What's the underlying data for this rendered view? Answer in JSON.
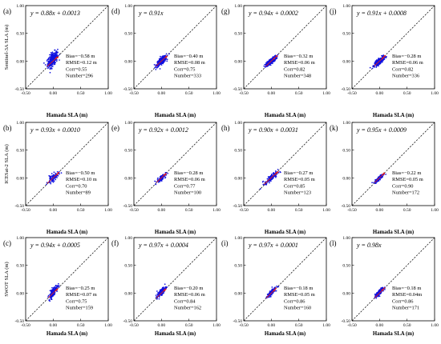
{
  "chart_data": {
    "type": "scatter",
    "xlabel": "Hamada SLA (m)",
    "xlim": [
      -0.5,
      1.0
    ],
    "ylim": [
      -0.5,
      1.0
    ],
    "x_ticks": [
      "-0.50",
      "0.00",
      "0.50",
      "1.00"
    ],
    "y_ticks": [
      "-0.50",
      "0.00",
      "0.50",
      "1.00"
    ],
    "reference_line": "y = x (dashed)",
    "colors": {
      "points": "#1010e0",
      "highlight": "#e02020",
      "fit": "#e02020",
      "one_to_one": "#000000"
    },
    "row_labels": [
      "Sentinel-3A SLA (m)",
      "ICESat-2 SLA (m)",
      "SWOT SLA (m)"
    ],
    "panels": [
      {
        "letter": "(a)",
        "row": 0,
        "col": 0,
        "equation": "y = 0.88x + 0.0013",
        "slope": 0.88,
        "intercept": 0.0013,
        "stats": [
          "Bias=−0.58 m",
          "RMSE=0.12 m",
          "Corr=0.55",
          "Number=296"
        ],
        "count": 296,
        "bias": -0.58,
        "rmse": 0.12,
        "corr": 0.55,
        "cloud": {
          "x_center": -0.01,
          "y_center": 0.03,
          "x_spread": 0.045,
          "y_spread": 0.07
        }
      },
      {
        "letter": "(d)",
        "row": 0,
        "col": 1,
        "equation": "y = 0.91x",
        "slope": 0.91,
        "intercept": 0,
        "stats": [
          "Bias=−0.40 m",
          "RMSE=0.08 m",
          "Corr=0.75",
          "Number=333"
        ],
        "count": 333,
        "bias": -0.4,
        "rmse": 0.08,
        "corr": 0.75,
        "cloud": {
          "x_center": 0.0,
          "y_center": 0.0,
          "x_spread": 0.045,
          "y_spread": 0.045
        }
      },
      {
        "letter": "(g)",
        "row": 0,
        "col": 2,
        "equation": "y = 0.94x + 0.0002",
        "slope": 0.94,
        "intercept": 0.0002,
        "stats": [
          "Bias=−0.32 m",
          "RMSE=0.06 m",
          "Corr=0.82",
          "Number=348"
        ],
        "count": 348,
        "bias": -0.32,
        "rmse": 0.06,
        "corr": 0.82,
        "cloud": {
          "x_center": 0.0,
          "y_center": 0.0,
          "x_spread": 0.045,
          "y_spread": 0.04
        }
      },
      {
        "letter": "(j)",
        "row": 0,
        "col": 3,
        "equation": "y = 0.91x + 0.0008",
        "slope": 0.91,
        "intercept": 0.0008,
        "stats": [
          "Bias=−0.28 m",
          "RMSE=0.06 m",
          "Corr=0.82",
          "Number=336"
        ],
        "count": 336,
        "bias": -0.28,
        "rmse": 0.06,
        "corr": 0.82,
        "cloud": {
          "x_center": 0.0,
          "y_center": 0.0,
          "x_spread": 0.045,
          "y_spread": 0.04
        }
      },
      {
        "letter": "(b)",
        "row": 1,
        "col": 0,
        "equation": "y = 0.93x + 0.0010",
        "slope": 0.93,
        "intercept": 0.001,
        "stats": [
          "Bias=−0.50 m",
          "RMSE=0.10 m",
          "Corr=0.70",
          "Number=89"
        ],
        "count": 89,
        "bias": -0.5,
        "rmse": 0.1,
        "corr": 0.7,
        "cloud": {
          "x_center": 0.0,
          "y_center": 0.0,
          "x_spread": 0.05,
          "y_spread": 0.05
        }
      },
      {
        "letter": "(e)",
        "row": 1,
        "col": 1,
        "equation": "y = 0.92x + 0.0012",
        "slope": 0.92,
        "intercept": 0.0012,
        "stats": [
          "Bias=−0.28 m",
          "RMSE=0.06 m",
          "Corr=0.77",
          "Number=100"
        ],
        "count": 100,
        "bias": -0.28,
        "rmse": 0.06,
        "corr": 0.77,
        "cloud": {
          "x_center": 0.0,
          "y_center": 0.0,
          "x_spread": 0.04,
          "y_spread": 0.04
        }
      },
      {
        "letter": "(h)",
        "row": 1,
        "col": 2,
        "equation": "y = 0.90x + 0.0031",
        "slope": 0.9,
        "intercept": 0.0031,
        "stats": [
          "Bias=−0.27 m",
          "RMSE=0.05 m",
          "Corr=0.85",
          "Number=123"
        ],
        "count": 123,
        "bias": -0.27,
        "rmse": 0.05,
        "corr": 0.85,
        "cloud": {
          "x_center": 0.0,
          "y_center": 0.0,
          "x_spread": 0.06,
          "y_spread": 0.055
        }
      },
      {
        "letter": "(k)",
        "row": 1,
        "col": 3,
        "equation": "y = 0.95x + 0.0009",
        "slope": 0.95,
        "intercept": 0.0009,
        "stats": [
          "Bias=−0.22 m",
          "RMSE=0.05 m",
          "Corr=0.90",
          "Number=172"
        ],
        "count": 172,
        "bias": -0.22,
        "rmse": 0.05,
        "corr": 0.9,
        "cloud": {
          "x_center": 0.0,
          "y_center": 0.0,
          "x_spread": 0.04,
          "y_spread": 0.04
        }
      },
      {
        "letter": "(c)",
        "row": 2,
        "col": 0,
        "equation": "y = 0.94x + 0.0005",
        "slope": 0.94,
        "intercept": 0.0005,
        "stats": [
          "Bias=−0.25 m",
          "RMSE=0.07 m",
          "Corr=0.75",
          "Number=159"
        ],
        "count": 159,
        "bias": -0.25,
        "rmse": 0.07,
        "corr": 0.75,
        "cloud": {
          "x_center": 0.0,
          "y_center": 0.02,
          "x_spread": 0.04,
          "y_spread": 0.06
        }
      },
      {
        "letter": "(f)",
        "row": 2,
        "col": 1,
        "equation": "y = 0.97x + 0.0004",
        "slope": 0.97,
        "intercept": 0.0004,
        "stats": [
          "Bias=−0.20 m",
          "RMSE=0.06 m",
          "Corr=0.84",
          "Number=162"
        ],
        "count": 162,
        "bias": -0.2,
        "rmse": 0.06,
        "corr": 0.84,
        "cloud": {
          "x_center": 0.0,
          "y_center": 0.02,
          "x_spread": 0.04,
          "y_spread": 0.05
        }
      },
      {
        "letter": "(i)",
        "row": 2,
        "col": 2,
        "equation": "y = 0.97x + 0.0001",
        "slope": 0.97,
        "intercept": 0.0001,
        "stats": [
          "Bias=−0.18 m",
          "RMSE=0.05 m",
          "Corr=0.86",
          "Number=160"
        ],
        "count": 160,
        "bias": -0.18,
        "rmse": 0.05,
        "corr": 0.86,
        "cloud": {
          "x_center": 0.0,
          "y_center": 0.01,
          "x_spread": 0.04,
          "y_spread": 0.045
        }
      },
      {
        "letter": "(l)",
        "row": 2,
        "col": 3,
        "equation": "y = 0.98x",
        "slope": 0.98,
        "intercept": 0,
        "stats": [
          "Bias=−0.18 m",
          "RMSE=0.04m",
          "Corr=0.86",
          "Number=171"
        ],
        "count": 171,
        "bias": -0.18,
        "rmse": 0.04,
        "corr": 0.86,
        "cloud": {
          "x_center": 0.0,
          "y_center": 0.01,
          "x_spread": 0.04,
          "y_spread": 0.045
        }
      }
    ]
  }
}
